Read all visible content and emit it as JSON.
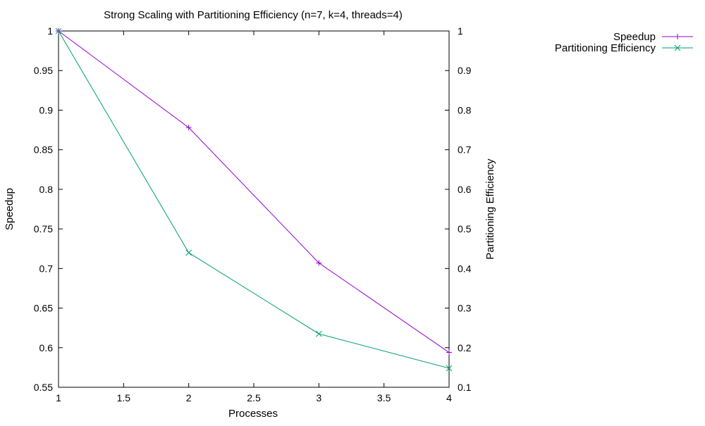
{
  "chart_data": {
    "type": "line",
    "title": "Strong Scaling with Partitioning Efficiency (n=7, k=4, threads=4)",
    "xlabel": "Processes",
    "ylabel": "Speedup",
    "y2label": "Partitioning Efficiency",
    "xlim": [
      1,
      4
    ],
    "ylim": [
      0.55,
      1
    ],
    "y2lim": [
      0.1,
      1
    ],
    "x_ticks": [
      "1",
      "1.5",
      "2",
      "2.5",
      "3",
      "3.5",
      "4"
    ],
    "y_ticks": [
      "0.55",
      "0.6",
      "0.65",
      "0.7",
      "0.75",
      "0.8",
      "0.85",
      "0.9",
      "0.95",
      "1"
    ],
    "y2_ticks": [
      "0.1",
      "0.2",
      "0.3",
      "0.4",
      "0.5",
      "0.6",
      "0.7",
      "0.8",
      "0.9",
      "1"
    ],
    "grid": false,
    "legend_position": "top-right outside",
    "series": [
      {
        "name": "Speedup",
        "axis": "left",
        "color": "#9400d3",
        "marker": "plus",
        "x": [
          1,
          2,
          3,
          4
        ],
        "values": [
          1.0,
          0.878,
          0.707,
          0.594
        ]
      },
      {
        "name": "Partitioning Efficiency",
        "axis": "right",
        "color": "#009e73",
        "marker": "cross",
        "x": [
          1,
          2,
          3,
          4
        ],
        "values": [
          1.0,
          0.44,
          0.235,
          0.148
        ]
      }
    ]
  }
}
